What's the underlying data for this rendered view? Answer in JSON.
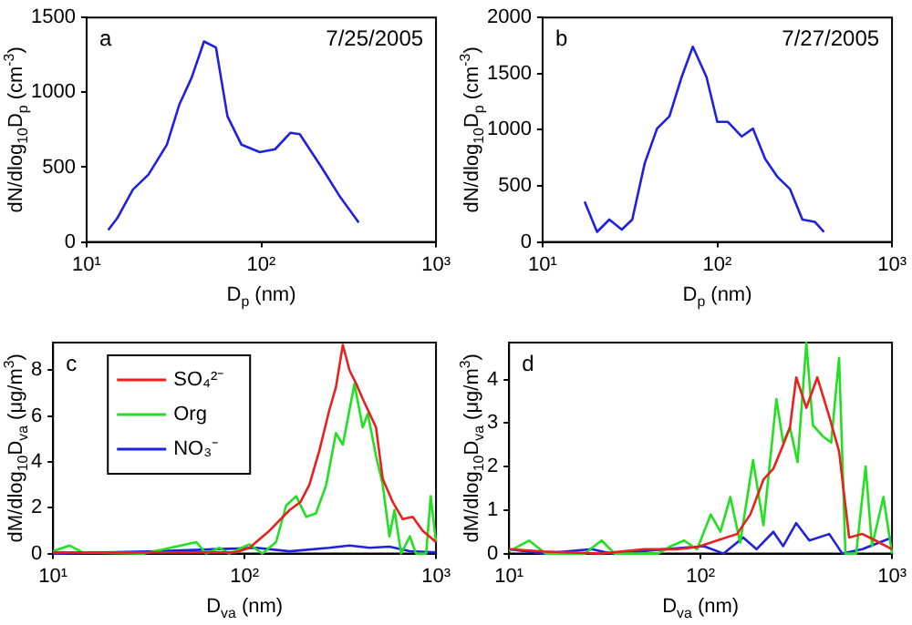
{
  "chart_data": [
    {
      "type": "line",
      "xlabel": "D$_{p}$ (nm)",
      "ylabel": "dN/dlog$_{10}$D$_{p}$ (cm$^{-3}$)",
      "annotations": [
        "a",
        "7/25/2005"
      ],
      "log": "x",
      "grid": false,
      "legend": false,
      "marker": "none",
      "line_style": "solid",
      "xlim": [
        10,
        1000
      ],
      "xticks": [
        {
          "value": 10,
          "label": "10¹"
        },
        {
          "value": 100,
          "label": "10²"
        },
        {
          "value": 1000,
          "label": "10³"
        }
      ],
      "ylim": [
        0,
        1500
      ],
      "yticks": [
        0,
        500,
        1000,
        1500
      ],
      "series": [
        {
          "color": "#2020e0",
          "x": [
            13.3,
            15,
            18.4,
            22.6,
            28.8,
            34,
            40,
            47,
            55,
            64,
            77,
            98,
            120,
            147,
            166,
            221,
            283,
            361
          ],
          "values": [
            80,
            160,
            350,
            450,
            650,
            920,
            1100,
            1340,
            1300,
            840,
            650,
            600,
            620,
            730,
            720,
            500,
            300,
            130
          ]
        }
      ]
    },
    {
      "type": "line",
      "xlabel": "D$_{p}$ (nm)",
      "ylabel": "dN/dlog$_{10}$D$_{p}$ (cm$^{-3}$)",
      "annotations": [
        "b",
        "7/27/2005"
      ],
      "log": "x",
      "grid": false,
      "legend": false,
      "marker": "none",
      "line_style": "solid",
      "xlim": [
        10,
        1000
      ],
      "xticks": [
        {
          "value": 10,
          "label": "10¹"
        },
        {
          "value": 100,
          "label": "10²"
        },
        {
          "value": 1000,
          "label": "10³"
        }
      ],
      "ylim": [
        0,
        2000
      ],
      "yticks": [
        0,
        500,
        1000,
        1500,
        2000
      ],
      "series": [
        {
          "color": "#2020e0",
          "x": [
            17.4,
            20.5,
            24.1,
            28.4,
            32.6,
            38.4,
            45.2,
            53.2,
            62.5,
            72.4,
            86.7,
            100,
            115,
            138,
            160,
            188,
            221,
            261,
            307,
            361,
            408
          ],
          "values": [
            360,
            90,
            200,
            110,
            200,
            700,
            1010,
            1120,
            1470,
            1740,
            1470,
            1070,
            1070,
            940,
            1010,
            740,
            580,
            470,
            200,
            180,
            90
          ]
        }
      ]
    },
    {
      "type": "line",
      "xlabel": "D$_{va}$ (nm)",
      "ylabel": "dM/dlog$_{10}$D$_{va}$ (μg/m$^{3}$)",
      "annotations": [
        "c"
      ],
      "log": "x",
      "grid": false,
      "legend": "top left",
      "marker": "none",
      "line_style": "solid",
      "xlim": [
        10,
        1000
      ],
      "xticks": [
        {
          "value": 10,
          "label": "10¹"
        },
        {
          "value": 100,
          "label": "10²"
        },
        {
          "value": 1000,
          "label": "10³"
        }
      ],
      "ylim": [
        0,
        9.2
      ],
      "yticks": [
        0,
        2,
        4,
        6,
        8
      ],
      "series": [
        {
          "name": "SO₄²⁻",
          "color": "#e82020",
          "x": [
            10,
            50,
            90,
            106,
            135,
            172,
            196,
            218,
            246,
            277,
            300,
            326,
            353,
            383,
            414,
            450,
            486,
            527,
            594,
            670,
            755,
            851,
            1000
          ],
          "values": [
            0.05,
            0.05,
            0.05,
            0.25,
            1,
            1.9,
            2.25,
            3,
            4.5,
            6.25,
            7.25,
            9.1,
            8,
            7.4,
            6.75,
            6.1,
            5.5,
            3.25,
            2.25,
            1.5,
            1.6,
            1,
            0.5
          ]
        },
        {
          "name": "Org",
          "color": "#20e020",
          "x": [
            10,
            12.2,
            14.3,
            30,
            56,
            63,
            74,
            83,
            106,
            124,
            146,
            165,
            186,
            210,
            236,
            267,
            300,
            326,
            353,
            375,
            414,
            440,
            486,
            527,
            571,
            607,
            657,
            730,
            786,
            888,
            938,
            1000
          ],
          "values": [
            0.1,
            0.35,
            0.05,
            0,
            0.5,
            0,
            0.25,
            0,
            0.4,
            0,
            0.5,
            2.1,
            2.5,
            1.6,
            1.75,
            3,
            5.25,
            4.75,
            6.25,
            7.4,
            5.5,
            6.1,
            4.25,
            3,
            0.75,
            1.9,
            0,
            0.75,
            0,
            0,
            2.5,
            0.5
          ]
        },
        {
          "name": "NO₃⁻",
          "color": "#2020e0",
          "x": [
            10,
            34.6,
            115,
            172,
            277,
            353,
            450,
            571,
            730,
            1000
          ],
          "values": [
            0,
            0.1,
            0.25,
            0.1,
            0.25,
            0.35,
            0.25,
            0.3,
            0.1,
            0.05
          ]
        }
      ]
    },
    {
      "type": "line",
      "xlabel": "D$_{va}$ (nm)",
      "ylabel": "dM/dlog$_{10}$D$_{va}$ (μg/m$^{3}$)",
      "annotations": [
        "d"
      ],
      "log": "x",
      "grid": false,
      "legend": false,
      "marker": "none",
      "line_style": "solid",
      "xlim": [
        10,
        1000
      ],
      "xticks": [
        {
          "value": 10,
          "label": "10¹"
        },
        {
          "value": 100,
          "label": "10²"
        },
        {
          "value": 1000,
          "label": "10³"
        }
      ],
      "ylim": [
        0,
        4.85
      ],
      "yticks": [
        0,
        1,
        2,
        3,
        4
      ],
      "series": [
        {
          "color": "#e82020",
          "x": [
            10,
            15,
            30,
            51,
            76,
            96,
            122,
            155,
            182,
            213,
            240,
            270,
            293,
            316,
            357,
            407,
            470,
            529,
            597,
            700,
            820,
            1000
          ],
          "values": [
            0.1,
            0.05,
            0,
            0.1,
            0.1,
            0.15,
            0.3,
            0.45,
            0.9,
            1.7,
            1.95,
            2.5,
            2.9,
            4.05,
            3.35,
            4.05,
            3.15,
            2.35,
            0.37,
            0.45,
            0.3,
            0.1
          ]
        },
        {
          "color": "#20e020",
          "x": [
            10,
            12.7,
            15.5,
            24.9,
            30.4,
            35.6,
            60,
            70,
            82,
            96,
            113,
            127,
            143,
            161,
            188,
            213,
            249,
            270,
            293,
            321,
            357,
            386,
            434,
            481,
            529,
            571,
            650,
            728,
            786,
            902,
            1000
          ],
          "values": [
            0.05,
            0.3,
            0,
            0,
            0.3,
            0,
            0,
            0.17,
            0.3,
            0.1,
            0.9,
            0.5,
            1.3,
            0.25,
            2.15,
            0.65,
            3.55,
            2.55,
            2.9,
            2.1,
            4.85,
            2.95,
            2.7,
            2.55,
            4.5,
            0,
            0,
            2,
            0.17,
            1.3,
            0
          ]
        },
        {
          "color": "#2020e0",
          "x": [
            10,
            15,
            27,
            34,
            104,
            132,
            167,
            196,
            240,
            270,
            316,
            370,
            470,
            550,
            700,
            1000
          ],
          "values": [
            0.1,
            0,
            0.1,
            0,
            0.17,
            0,
            0.37,
            0.1,
            0.5,
            0.17,
            0.7,
            0.3,
            0.45,
            0,
            0.1,
            0.37
          ]
        }
      ]
    }
  ]
}
